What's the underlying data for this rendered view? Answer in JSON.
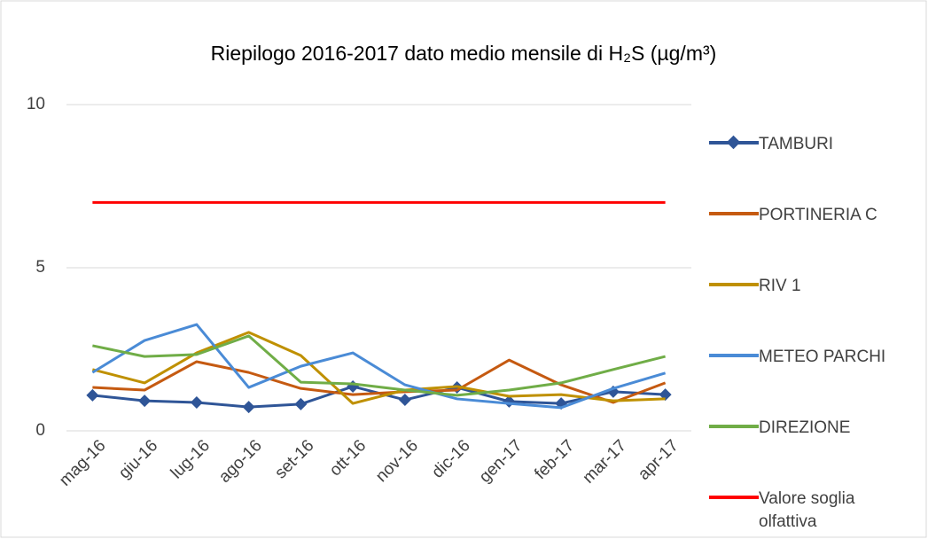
{
  "chart_data": {
    "type": "line",
    "title": "Riepilogo 2016-2017 dato medio mensile di H₂S (µg/m³)",
    "categories": [
      "mag-16",
      "giu-16",
      "lug-16",
      "ago-16",
      "set-16",
      "ott-16",
      "nov-16",
      "dic-16",
      "gen-17",
      "feb-17",
      "mar-17",
      "apr-17"
    ],
    "series": [
      {
        "name": "TAMBURI",
        "color": "#2f5597",
        "marker": "diamond",
        "values": [
          1.09,
          0.92,
          0.87,
          0.73,
          0.82,
          1.36,
          0.95,
          1.33,
          0.9,
          0.84,
          1.2,
          1.11
        ]
      },
      {
        "name": "PORTINERIA C",
        "color": "#c55a11",
        "values": [
          1.33,
          1.25,
          2.12,
          1.79,
          1.3,
          1.11,
          1.2,
          1.25,
          2.17,
          1.41,
          0.87,
          1.47
        ]
      },
      {
        "name": "RIV 1",
        "color": "#bf9000",
        "values": [
          1.88,
          1.47,
          2.39,
          3.02,
          2.31,
          0.84,
          1.25,
          1.36,
          1.06,
          1.11,
          0.92,
          0.98
        ]
      },
      {
        "name": "METEO PARCHI",
        "color": "#4a8bd6",
        "values": [
          1.79,
          2.77,
          3.26,
          1.33,
          1.98,
          2.39,
          1.41,
          0.98,
          0.84,
          0.71,
          1.3,
          1.77
        ]
      },
      {
        "name": "DIREZIONE",
        "color": "#70ad47",
        "values": [
          2.61,
          2.28,
          2.34,
          2.91,
          1.49,
          1.44,
          1.25,
          1.09,
          1.25,
          1.47,
          1.88,
          2.28
        ]
      },
      {
        "name": "Valore soglia olfattiva",
        "color": "#ff0000",
        "values": [
          7,
          7,
          7,
          7,
          7,
          7,
          7,
          7,
          7,
          7,
          7,
          7
        ]
      }
    ],
    "ylim": [
      0,
      10
    ],
    "yticks": [
      0,
      5,
      10
    ],
    "grid": true
  }
}
